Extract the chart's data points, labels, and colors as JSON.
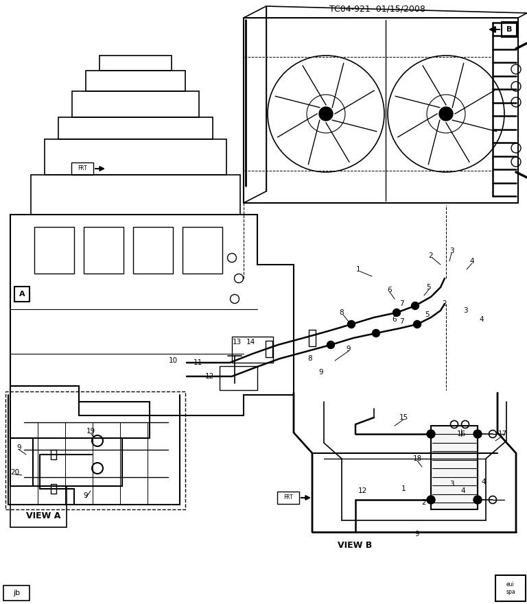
{
  "title": "TC04-921  01/15/2008",
  "bg_color": "#ffffff",
  "line_color": "#000000",
  "fig_width": 7.68,
  "fig_height": 8.81,
  "dpi": 100,
  "bottom_left_label": "jb",
  "view_a_label": "VIEW A",
  "view_b_label": "VIEW B"
}
